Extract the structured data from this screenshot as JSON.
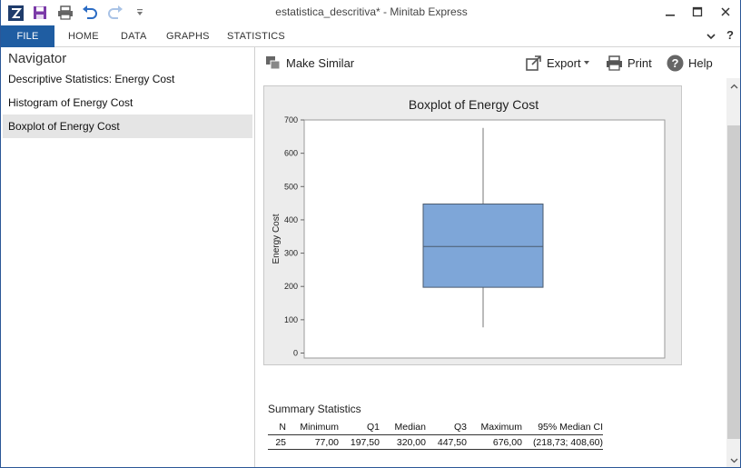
{
  "window": {
    "title": "estatistica_descritiva* - Minitab Express",
    "brand_color": "#1f5da2"
  },
  "quick_access": {
    "icons": [
      "app-logo-icon",
      "save-icon",
      "print-icon",
      "undo-icon",
      "redo-icon",
      "customize-icon"
    ]
  },
  "ribbon": {
    "tabs": [
      "FILE",
      "HOME",
      "DATA",
      "GRAPHS",
      "STATISTICS"
    ]
  },
  "navigator": {
    "title": "Navigator",
    "items": [
      {
        "label": "Descriptive Statistics: Energy Cost"
      },
      {
        "label": "Histogram of Energy Cost"
      },
      {
        "label": "Boxplot of Energy Cost",
        "selected": true
      }
    ]
  },
  "toolbar": {
    "make_similar": "Make Similar",
    "export": "Export",
    "print": "Print",
    "help": "Help"
  },
  "chart_data": {
    "type": "boxplot",
    "title": "Boxplot of Energy Cost",
    "ylabel": "Energy Cost",
    "xlabel": "",
    "ylim": [
      -15,
      700
    ],
    "yticks": [
      0,
      100,
      200,
      300,
      400,
      500,
      600,
      700
    ],
    "box_color": "#7ea6d8",
    "box_edge_color": "#4a5a6e",
    "values": {
      "minimum": 77.0,
      "q1": 197.5,
      "median": 320.0,
      "q3": 447.5,
      "maximum": 676.0
    }
  },
  "summary": {
    "title": "Summary Statistics",
    "headers": [
      "N",
      "Minimum",
      "Q1",
      "Median",
      "Q3",
      "Maximum",
      "95% Median CI"
    ],
    "row": [
      "25",
      "77,00",
      "197,50",
      "320,00",
      "447,50",
      "676,00",
      "(218,73; 408,60)"
    ]
  }
}
